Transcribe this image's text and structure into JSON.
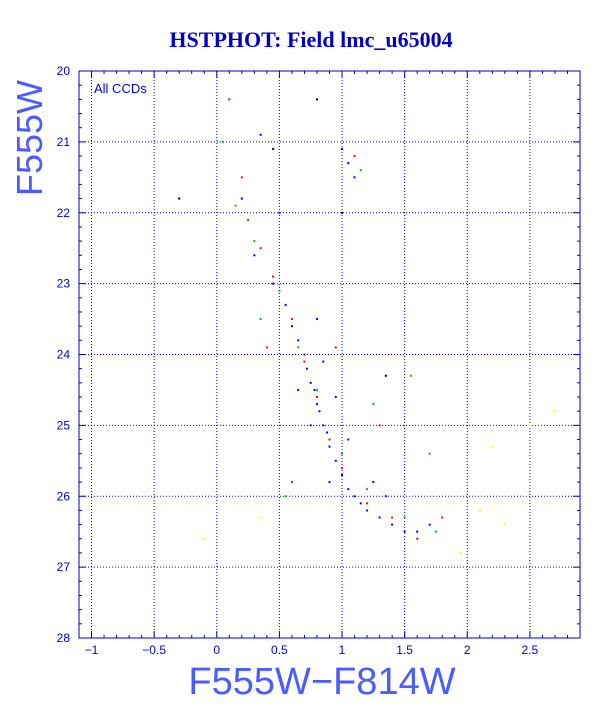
{
  "chart_data": {
    "type": "scatter",
    "title": "HSTPHOT: Field lmc_u65004",
    "xlabel": "F555W−F814W",
    "ylabel": "F555W",
    "annotation": "All CCDs",
    "xlim": [
      -1.1,
      2.9
    ],
    "ylim": [
      28,
      20
    ],
    "y_inverted": true,
    "grid": true,
    "x_ticks": [
      -1,
      -0.5,
      0,
      0.5,
      1,
      1.5,
      2,
      2.5
    ],
    "x_tick_labels": [
      "−1",
      "−0.5",
      "0",
      "0.5",
      "1",
      "1.5",
      "2",
      "2.5"
    ],
    "y_ticks": [
      20,
      21,
      22,
      23,
      24,
      25,
      26,
      27,
      28
    ],
    "y_tick_labels": [
      "20",
      "21",
      "22",
      "23",
      "24",
      "25",
      "26",
      "27",
      "28"
    ],
    "series": [
      {
        "color": "#0000ff",
        "points": [
          [
            0.2,
            21.8
          ],
          [
            0.3,
            22.6
          ],
          [
            0.45,
            23.0
          ],
          [
            0.55,
            23.3
          ],
          [
            0.6,
            23.6
          ],
          [
            0.65,
            23.8
          ],
          [
            0.7,
            24.0
          ],
          [
            0.72,
            24.2
          ],
          [
            0.75,
            24.4
          ],
          [
            0.78,
            24.5
          ],
          [
            0.8,
            24.7
          ],
          [
            0.82,
            24.8
          ],
          [
            0.85,
            25.0
          ],
          [
            0.88,
            25.1
          ],
          [
            0.9,
            25.3
          ],
          [
            0.95,
            25.5
          ],
          [
            1.0,
            25.7
          ],
          [
            1.05,
            25.9
          ],
          [
            1.1,
            26.0
          ],
          [
            1.15,
            26.1
          ],
          [
            1.2,
            26.2
          ],
          [
            1.3,
            26.3
          ],
          [
            1.4,
            26.4
          ],
          [
            1.5,
            26.5
          ],
          [
            1.6,
            26.5
          ],
          [
            1.7,
            26.4
          ],
          [
            1.0,
            21.1
          ],
          [
            1.05,
            21.3
          ],
          [
            1.1,
            21.5
          ],
          [
            0.85,
            24.1
          ],
          [
            0.95,
            24.6
          ],
          [
            1.05,
            25.2
          ],
          [
            1.25,
            25.8
          ],
          [
            0.35,
            20.9
          ],
          [
            0.5,
            22.0
          ],
          [
            0.65,
            24.5
          ],
          [
            0.75,
            25.0
          ],
          [
            0.9,
            25.8
          ],
          [
            1.35,
            26.0
          ],
          [
            0.8,
            23.5
          ]
        ]
      },
      {
        "color": "#ff0000",
        "points": [
          [
            0.1,
            20.4
          ],
          [
            0.2,
            21.5
          ],
          [
            0.35,
            22.5
          ],
          [
            0.45,
            22.9
          ],
          [
            0.6,
            23.5
          ],
          [
            0.7,
            24.1
          ],
          [
            0.8,
            24.6
          ],
          [
            0.9,
            25.2
          ],
          [
            1.0,
            25.6
          ],
          [
            1.2,
            26.1
          ],
          [
            1.4,
            26.3
          ],
          [
            1.6,
            26.6
          ],
          [
            1.8,
            26.3
          ],
          [
            1.1,
            21.2
          ],
          [
            0.6,
            25.8
          ],
          [
            0.95,
            23.9
          ],
          [
            1.3,
            25.0
          ],
          [
            0.4,
            23.9
          ],
          [
            0.25,
            22.1
          ]
        ]
      },
      {
        "color": "#00c000",
        "points": [
          [
            0.05,
            21.0
          ],
          [
            0.15,
            21.9
          ],
          [
            0.3,
            22.4
          ],
          [
            0.5,
            23.1
          ],
          [
            0.65,
            23.9
          ],
          [
            0.8,
            24.5
          ],
          [
            1.0,
            25.4
          ],
          [
            1.2,
            25.9
          ],
          [
            1.5,
            26.3
          ],
          [
            1.75,
            26.5
          ],
          [
            1.15,
            21.4
          ],
          [
            1.55,
            24.3
          ],
          [
            0.55,
            26.0
          ],
          [
            1.7,
            25.4
          ],
          [
            0.35,
            23.5
          ],
          [
            1.25,
            24.7
          ]
        ]
      },
      {
        "color": "#ffff00",
        "points": [
          [
            2.1,
            26.2
          ],
          [
            2.3,
            26.4
          ],
          [
            2.5,
            25.0
          ],
          [
            2.7,
            24.8
          ],
          [
            0.35,
            26.3
          ],
          [
            -0.1,
            26.6
          ],
          [
            2.2,
            25.3
          ],
          [
            1.95,
            26.8
          ]
        ]
      },
      {
        "color": "#000000",
        "points": [
          [
            -0.3,
            21.8
          ],
          [
            0.45,
            21.1
          ],
          [
            1.0,
            22.0
          ],
          [
            0.8,
            20.4
          ],
          [
            1.35,
            24.3
          ]
        ]
      }
    ]
  }
}
